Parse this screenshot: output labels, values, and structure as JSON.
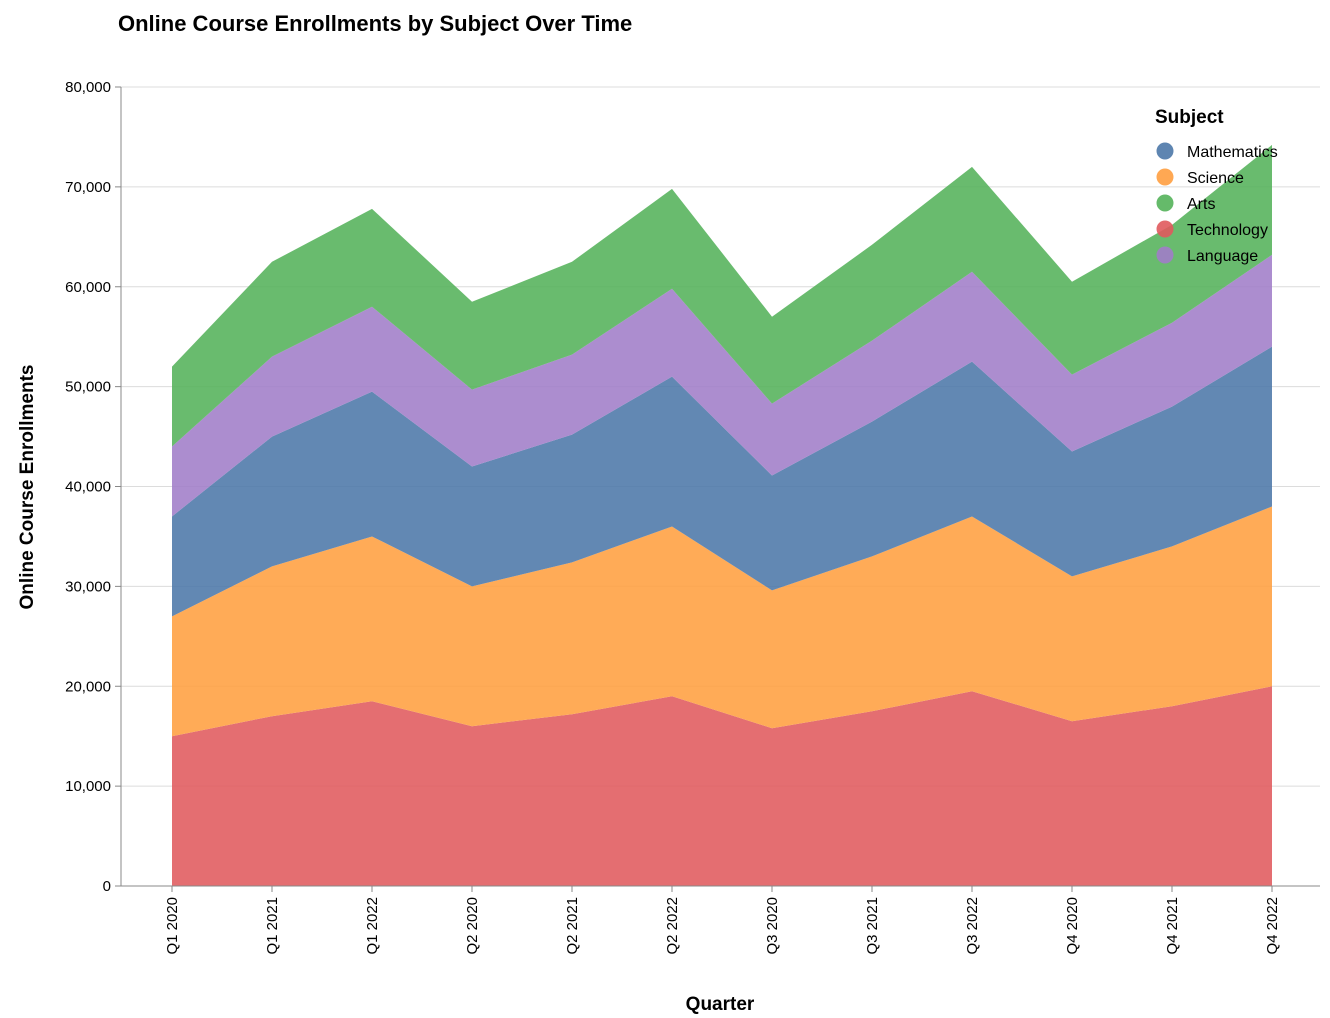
{
  "chart_data": {
    "type": "area",
    "stacked": true,
    "title": "Online Course Enrollments by Subject Over Time",
    "xlabel": "Quarter",
    "ylabel": "Online Course Enrollments",
    "ylim": [
      0,
      80000
    ],
    "yticks": [
      0,
      10000,
      20000,
      30000,
      40000,
      50000,
      60000,
      70000,
      80000
    ],
    "ytick_labels": [
      "0",
      "10,000",
      "20,000",
      "30,000",
      "40,000",
      "50,000",
      "60,000",
      "70,000",
      "80,000"
    ],
    "grid": true,
    "legend_title": "Subject",
    "legend_position": "top-right",
    "categories": [
      "Q1 2020",
      "Q1 2021",
      "Q1 2022",
      "Q2 2020",
      "Q2 2021",
      "Q2 2022",
      "Q3 2020",
      "Q3 2021",
      "Q3 2022",
      "Q4 2020",
      "Q4 2021",
      "Q4 2022"
    ],
    "legend_order": [
      "Mathematics",
      "Science",
      "Arts",
      "Technology",
      "Language"
    ],
    "stack_order": [
      "Technology",
      "Science",
      "Mathematics",
      "Language",
      "Arts"
    ],
    "series": [
      {
        "name": "Mathematics",
        "color": "#4c78a8",
        "values": [
          10000,
          13000,
          14500,
          12000,
          12800,
          15000,
          11500,
          13500,
          15500,
          12500,
          14000,
          16000
        ]
      },
      {
        "name": "Science",
        "color": "#ff9f40",
        "values": [
          12000,
          15000,
          16500,
          14000,
          15200,
          17000,
          13800,
          15500,
          17500,
          14500,
          16000,
          18000
        ]
      },
      {
        "name": "Arts",
        "color": "#54b25a",
        "values": [
          8000,
          9500,
          9800,
          8800,
          9300,
          10000,
          8700,
          9600,
          10500,
          9300,
          9800,
          11000
        ]
      },
      {
        "name": "Technology",
        "color": "#e05a5d",
        "values": [
          15000,
          17000,
          18500,
          16000,
          17200,
          19000,
          15800,
          17500,
          19500,
          16500,
          18000,
          20000
        ]
      },
      {
        "name": "Language",
        "color": "#a17dc8",
        "values": [
          7000,
          8000,
          8500,
          7700,
          8000,
          8800,
          7200,
          8100,
          9000,
          7700,
          8400,
          9200
        ]
      }
    ]
  }
}
